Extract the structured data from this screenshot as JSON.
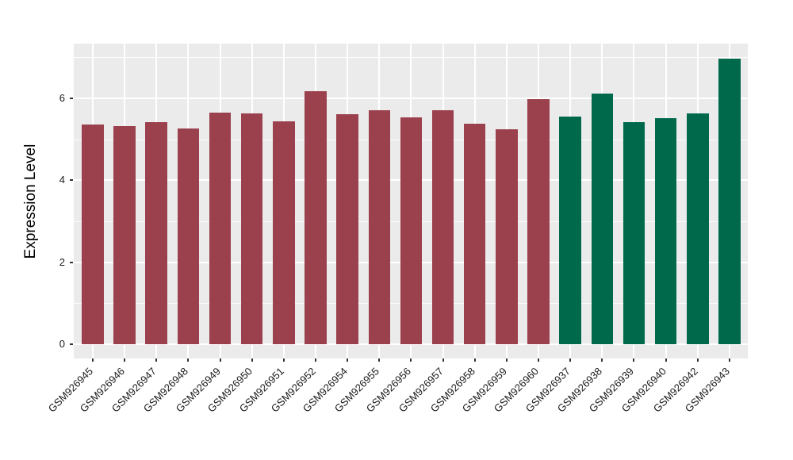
{
  "figure": {
    "background": "#FFFFFF",
    "panel_background": "#EBEBEB",
    "grid_color": "#FFFFFF",
    "tick_mark_color": "#333333",
    "axis_text_color": "#1A1A1A",
    "axis_title_color": "#000000"
  },
  "chart_data": {
    "type": "bar",
    "title": "",
    "xlabel": "",
    "ylabel": "Expression Level",
    "ylim": [
      0,
      7.35
    ],
    "y_ticks": [
      0,
      2,
      4,
      6
    ],
    "y_minor_ticks": [
      1,
      3,
      5,
      7
    ],
    "grid": "on",
    "legend_position": "none",
    "x_tick_rotation_deg": 45,
    "categories": [
      "GSM926945",
      "GSM926946",
      "GSM926947",
      "GSM926948",
      "GSM926949",
      "GSM926950",
      "GSM926951",
      "GSM926952",
      "GSM926954",
      "GSM926955",
      "GSM926956",
      "GSM926957",
      "GSM926958",
      "GSM926959",
      "GSM926960",
      "GSM926937",
      "GSM926938",
      "GSM926939",
      "GSM926940",
      "GSM926942",
      "GSM926943"
    ],
    "values": [
      5.36,
      5.32,
      5.42,
      5.26,
      5.65,
      5.63,
      5.44,
      6.17,
      5.61,
      5.71,
      5.53,
      5.71,
      5.38,
      5.25,
      5.98,
      5.56,
      6.12,
      5.42,
      5.52,
      5.62,
      6.97
    ],
    "colors": [
      "#9B414D",
      "#9B414D",
      "#9B414D",
      "#9B414D",
      "#9B414D",
      "#9B414D",
      "#9B414D",
      "#9B414D",
      "#9B414D",
      "#9B414D",
      "#9B414D",
      "#9B414D",
      "#9B414D",
      "#9B414D",
      "#9B414D",
      "#00694C",
      "#00694C",
      "#00694C",
      "#00694C",
      "#00694C",
      "#00694C"
    ],
    "color_groups": {
      "group1": {
        "color": "#9B414D",
        "sample_count": 15
      },
      "group2": {
        "color": "#00694C",
        "sample_count": 6
      }
    }
  }
}
